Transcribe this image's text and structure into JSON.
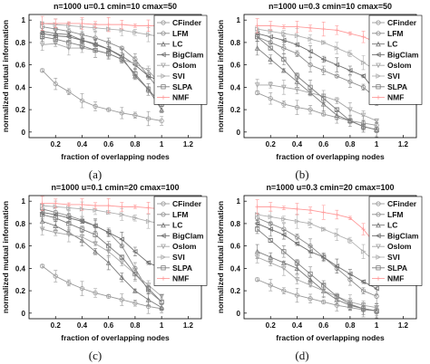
{
  "chart_data": [
    {
      "type": "line",
      "caption": "(a)",
      "title": "n=1000  u=0.1  cmin=10  cmax=50",
      "xlabel": "fraction of overlapping nodes",
      "ylabel": "normalized mutual information",
      "xlim": [
        0,
        1.3
      ],
      "ylim": [
        -0.05,
        1.05
      ],
      "xticks": [
        "0.2",
        "0.4",
        "0.6",
        "0.8",
        "1",
        "1.2"
      ],
      "yticks": [
        "0",
        "0.2",
        "0.4",
        "0.6",
        "0.8",
        "1"
      ],
      "x": [
        0.1,
        0.2,
        0.3,
        0.4,
        0.5,
        0.6,
        0.7,
        0.8,
        0.9,
        1.0
      ],
      "legend": "top-right",
      "series": [
        {
          "name": "CFinder",
          "values": [
            0.55,
            0.43,
            0.36,
            0.28,
            0.23,
            0.2,
            0.17,
            0.15,
            0.12,
            0.1
          ]
        },
        {
          "name": "LFM",
          "values": [
            0.94,
            0.92,
            0.9,
            0.87,
            0.84,
            0.8,
            0.75,
            0.65,
            0.5,
            0.35
          ]
        },
        {
          "name": "LC",
          "values": [
            0.9,
            0.88,
            0.87,
            0.82,
            0.79,
            0.74,
            0.67,
            0.5,
            0.38,
            0.2
          ]
        },
        {
          "name": "BigClam",
          "values": [
            0.88,
            0.86,
            0.85,
            0.82,
            0.78,
            0.74,
            0.68,
            0.6,
            0.5,
            0.45
          ]
        },
        {
          "name": "Oslom",
          "values": [
            0.78,
            0.79,
            0.75,
            0.75,
            0.73,
            0.7,
            0.65,
            0.61,
            0.55,
            0.42
          ]
        },
        {
          "name": "SVI",
          "values": [
            0.97,
            0.96,
            0.95,
            0.94,
            0.93,
            0.92,
            0.91,
            0.89,
            0.87,
            0.85
          ]
        },
        {
          "name": "SLPA",
          "values": [
            0.85,
            0.83,
            0.8,
            0.77,
            0.73,
            0.7,
            0.65,
            0.52,
            0.38,
            0.25
          ]
        },
        {
          "name": "NMF",
          "values": [
            0.97,
            0.97,
            0.97,
            0.97,
            0.96,
            0.96,
            0.96,
            0.95,
            0.95,
            0.95
          ]
        }
      ]
    },
    {
      "type": "line",
      "caption": "(b)",
      "title": "n=1000  u=0.3  cmin=10  cmax=50",
      "xlabel": "fraction of overlapping nodes",
      "ylabel": "normalized mutual information",
      "xlim": [
        0,
        1.3
      ],
      "ylim": [
        -0.05,
        1.05
      ],
      "xticks": [
        "0.2",
        "0.4",
        "0.6",
        "0.8",
        "1",
        "1.2"
      ],
      "yticks": [
        "0",
        "0.2",
        "0.4",
        "0.6",
        "0.8",
        "1"
      ],
      "x": [
        0.1,
        0.2,
        0.3,
        0.4,
        0.5,
        0.6,
        0.7,
        0.8,
        0.9,
        1.0
      ],
      "legend": "top-right",
      "series": [
        {
          "name": "CFinder",
          "values": [
            0.35,
            0.3,
            0.25,
            0.22,
            0.2,
            0.16,
            0.13,
            0.1,
            0.08,
            0.06
          ]
        },
        {
          "name": "LFM",
          "values": [
            0.85,
            0.8,
            0.75,
            0.7,
            0.6,
            0.55,
            0.5,
            0.45,
            0.4,
            0.3
          ]
        },
        {
          "name": "LC",
          "values": [
            0.75,
            0.65,
            0.55,
            0.45,
            0.35,
            0.25,
            0.15,
            0.1,
            0.05,
            0.02
          ]
        },
        {
          "name": "BigClam",
          "values": [
            0.88,
            0.85,
            0.82,
            0.78,
            0.72,
            0.65,
            0.6,
            0.55,
            0.5,
            0.35
          ]
        },
        {
          "name": "Oslom",
          "values": [
            0.42,
            0.42,
            0.4,
            0.38,
            0.35,
            0.32,
            0.28,
            0.2,
            0.15,
            0.1
          ]
        },
        {
          "name": "SVI",
          "values": [
            0.92,
            0.9,
            0.88,
            0.86,
            0.83,
            0.8,
            0.75,
            0.7,
            0.62,
            0.55
          ]
        },
        {
          "name": "SLPA",
          "values": [
            0.85,
            0.75,
            0.65,
            0.5,
            0.4,
            0.3,
            0.2,
            0.1,
            0.05,
            0.02
          ]
        },
        {
          "name": "NMF",
          "values": [
            0.95,
            0.95,
            0.94,
            0.94,
            0.93,
            0.92,
            0.91,
            0.88,
            0.85,
            0.8
          ]
        }
      ]
    },
    {
      "type": "line",
      "caption": "(c)",
      "title": "n=1000  u=0.1  cmin=20  cmax=100",
      "xlabel": "fraction of overlapping nodes",
      "ylabel": "normalized mutual information",
      "xlim": [
        0,
        1.3
      ],
      "ylim": [
        -0.05,
        1.05
      ],
      "xticks": [
        "0.2",
        "0.4",
        "0.6",
        "0.8",
        "1",
        "1.2"
      ],
      "yticks": [
        "0",
        "0.2",
        "0.4",
        "0.6",
        "0.8",
        "1"
      ],
      "x": [
        0.1,
        0.2,
        0.3,
        0.4,
        0.5,
        0.6,
        0.7,
        0.8,
        0.9,
        1.0
      ],
      "legend": "top-right",
      "series": [
        {
          "name": "CFinder",
          "values": [
            0.42,
            0.33,
            0.27,
            0.22,
            0.18,
            0.15,
            0.12,
            0.09,
            0.06,
            0.04
          ]
        },
        {
          "name": "LFM",
          "values": [
            0.93,
            0.9,
            0.87,
            0.83,
            0.78,
            0.72,
            0.6,
            0.4,
            0.2,
            0.1
          ]
        },
        {
          "name": "LC",
          "values": [
            0.82,
            0.78,
            0.72,
            0.65,
            0.55,
            0.45,
            0.32,
            0.2,
            0.12,
            0.05
          ]
        },
        {
          "name": "BigClam",
          "values": [
            0.9,
            0.88,
            0.85,
            0.82,
            0.78,
            0.72,
            0.66,
            0.55,
            0.45,
            0.4
          ]
        },
        {
          "name": "Oslom",
          "values": [
            0.75,
            0.72,
            0.7,
            0.68,
            0.62,
            0.55,
            0.45,
            0.35,
            0.25,
            0.15
          ]
        },
        {
          "name": "SVI",
          "values": [
            0.96,
            0.95,
            0.94,
            0.93,
            0.92,
            0.9,
            0.88,
            0.85,
            0.82,
            0.8
          ]
        },
        {
          "name": "SLPA",
          "values": [
            0.88,
            0.85,
            0.8,
            0.75,
            0.7,
            0.6,
            0.5,
            0.35,
            0.22,
            0.1
          ]
        },
        {
          "name": "NMF",
          "values": [
            0.98,
            0.98,
            0.97,
            0.97,
            0.96,
            0.96,
            0.95,
            0.95,
            0.94,
            0.93
          ]
        }
      ]
    },
    {
      "type": "line",
      "caption": "(d)",
      "title": "n=1000  u=0.3  cmin=20  cmax=100",
      "xlabel": "fraction of overlapping nodes",
      "ylabel": "normalized mutual information",
      "xlim": [
        0,
        1.3
      ],
      "ylim": [
        -0.05,
        1.05
      ],
      "xticks": [
        "0.2",
        "0.4",
        "0.6",
        "0.8",
        "1",
        "1.2"
      ],
      "yticks": [
        "0",
        "0.2",
        "0.4",
        "0.6",
        "0.8",
        "1"
      ],
      "x": [
        0.1,
        0.2,
        0.3,
        0.4,
        0.5,
        0.6,
        0.7,
        0.8,
        0.9,
        1.0
      ],
      "legend": "top-right",
      "series": [
        {
          "name": "CFinder",
          "values": [
            0.3,
            0.25,
            0.2,
            0.16,
            0.13,
            0.1,
            0.07,
            0.05,
            0.03,
            0.02
          ]
        },
        {
          "name": "LFM",
          "values": [
            0.85,
            0.8,
            0.75,
            0.68,
            0.6,
            0.5,
            0.4,
            0.3,
            0.2,
            0.15
          ]
        },
        {
          "name": "LC",
          "values": [
            0.55,
            0.5,
            0.45,
            0.4,
            0.3,
            0.2,
            0.12,
            0.07,
            0.04,
            0.02
          ]
        },
        {
          "name": "BigClam",
          "values": [
            0.8,
            0.75,
            0.7,
            0.62,
            0.55,
            0.5,
            0.42,
            0.35,
            0.28,
            0.22
          ]
        },
        {
          "name": "Oslom",
          "values": [
            0.5,
            0.45,
            0.4,
            0.3,
            0.25,
            0.2,
            0.15,
            0.1,
            0.07,
            0.05
          ]
        },
        {
          "name": "SVI",
          "values": [
            0.88,
            0.86,
            0.84,
            0.82,
            0.8,
            0.75,
            0.7,
            0.65,
            0.55,
            0.45
          ]
        },
        {
          "name": "SLPA",
          "values": [
            0.75,
            0.65,
            0.55,
            0.45,
            0.35,
            0.25,
            0.15,
            0.08,
            0.04,
            0.02
          ]
        },
        {
          "name": "NMF",
          "values": [
            0.95,
            0.95,
            0.94,
            0.93,
            0.92,
            0.9,
            0.88,
            0.85,
            0.75,
            0.6
          ]
        }
      ]
    }
  ],
  "style": {
    "series_colors": [
      "#9a9a9a",
      "#8c8c8c",
      "#7a7a7a",
      "#6e6e6e",
      "#a6a6a6",
      "#b0b0b0",
      "#7e7e7e",
      "#ff9a9a"
    ],
    "series_markers": [
      "circle",
      "circle",
      "triangle-up",
      "triangle-left",
      "triangle-down",
      "triangle-right",
      "square",
      "plus"
    ]
  }
}
